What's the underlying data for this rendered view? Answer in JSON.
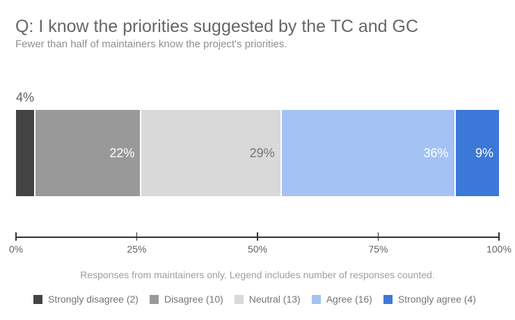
{
  "header": {
    "title": "Q: I know the priorities suggested by the TC and GC",
    "subtitle": "Fewer than half of maintainers know the project's priorities."
  },
  "footer": {
    "note": "Responses from maintainers only. Legend includes number of responses counted."
  },
  "chart_data": {
    "type": "bar",
    "variant": "horizontal-stacked-percentage",
    "title": "Q: I know the priorities suggested by the TC and GC",
    "subtitle": "Fewer than half of maintainers know the project's priorities.",
    "xlim": [
      0,
      100
    ],
    "x_ticks": [
      "0%",
      "25%",
      "50%",
      "75%",
      "100%"
    ],
    "grid": false,
    "legend_position": "bottom",
    "axis_line_color": "#333333",
    "segments": [
      {
        "name": "Strongly disagree",
        "responses": 2,
        "percent": 4,
        "value_label": "4%",
        "color": "#434343",
        "label_placement": "above",
        "label_color": "#616161"
      },
      {
        "name": "Disagree",
        "responses": 10,
        "percent": 22,
        "value_label": "22%",
        "color": "#999999",
        "label_placement": "inside",
        "label_color": "#ffffff"
      },
      {
        "name": "Neutral",
        "responses": 13,
        "percent": 29,
        "value_label": "29%",
        "color": "#d9d9d9",
        "label_placement": "inside",
        "label_color": "#757575"
      },
      {
        "name": "Agree",
        "responses": 16,
        "percent": 36,
        "value_label": "36%",
        "color": "#a4c2f4",
        "label_placement": "inside",
        "label_color": "#ffffff"
      },
      {
        "name": "Strongly agree",
        "responses": 4,
        "percent": 9,
        "value_label": "9%",
        "color": "#3c78d8",
        "label_placement": "inside",
        "label_color": "#ffffff"
      }
    ],
    "legend": [
      {
        "label": "Strongly disagree (2)",
        "color": "#434343"
      },
      {
        "label": "Disagree (10)",
        "color": "#999999"
      },
      {
        "label": "Neutral (13)",
        "color": "#d9d9d9"
      },
      {
        "label": "Agree (16)",
        "color": "#a4c2f4"
      },
      {
        "label": "Strongly agree (4)",
        "color": "#3c78d8"
      }
    ]
  }
}
